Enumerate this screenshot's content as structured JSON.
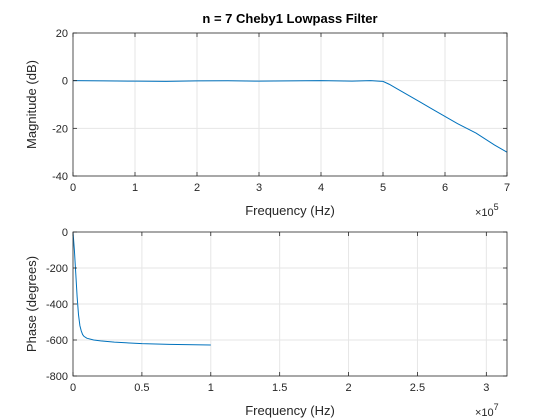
{
  "chart_data": [
    {
      "type": "line",
      "title": "n = 7 Cheby1 Lowpass Filter",
      "xlabel": "Frequency (Hz)",
      "ylabel": "Magnitude (dB)",
      "x_exponent_label": "×10",
      "x_exponent_power": "5",
      "x_scale_factor": 100000,
      "xlim": [
        0,
        700000
      ],
      "ylim": [
        -40,
        20
      ],
      "xticks": [
        0,
        100000,
        200000,
        300000,
        400000,
        500000,
        600000,
        700000
      ],
      "xtick_labels": [
        "0",
        "1",
        "2",
        "3",
        "4",
        "5",
        "6",
        "7"
      ],
      "yticks": [
        -40,
        -20,
        0,
        20
      ],
      "ytick_labels": [
        "-40",
        "-20",
        "0",
        "20"
      ],
      "grid": true,
      "line_color": "#0072bd",
      "series": [
        {
          "x": [
            0,
            50000,
            100000,
            150000,
            200000,
            250000,
            300000,
            350000,
            400000,
            450000,
            480000,
            500000,
            510000,
            520000,
            540000,
            560000,
            580000,
            600000,
            620000,
            650000,
            680000,
            700000
          ],
          "y": [
            0,
            -0.1,
            -0.2,
            -0.3,
            -0.1,
            -0.05,
            -0.2,
            -0.1,
            0,
            -0.2,
            0,
            -0.3,
            -1.5,
            -3,
            -6,
            -9,
            -12,
            -15,
            -18,
            -22,
            -27,
            -30
          ]
        }
      ]
    },
    {
      "type": "line",
      "title": "",
      "xlabel": "Frequency (Hz)",
      "ylabel": "Phase (degrees)",
      "x_exponent_label": "×10",
      "x_exponent_power": "7",
      "x_scale_factor": 10000000,
      "xlim": [
        0,
        31500000
      ],
      "ylim": [
        -800,
        0
      ],
      "xticks": [
        0,
        5000000,
        10000000,
        15000000,
        20000000,
        25000000,
        30000000
      ],
      "xtick_labels": [
        "0",
        "0.5",
        "1",
        "1.5",
        "2",
        "2.5",
        "3"
      ],
      "yticks": [
        -800,
        -600,
        -400,
        -200,
        0
      ],
      "ytick_labels": [
        "-800",
        "-600",
        "-400",
        "-200",
        "0"
      ],
      "grid": true,
      "line_color": "#0072bd",
      "series": [
        {
          "x": [
            0,
            100000,
            200000,
            300000,
            400000,
            500000,
            600000,
            700000,
            800000,
            1000000,
            1500000,
            2000000,
            3000000,
            5000000,
            7000000,
            10000000
          ],
          "y": [
            0,
            -100,
            -230,
            -360,
            -460,
            -520,
            -550,
            -570,
            -580,
            -590,
            -600,
            -605,
            -612,
            -620,
            -624,
            -628
          ]
        }
      ]
    }
  ]
}
